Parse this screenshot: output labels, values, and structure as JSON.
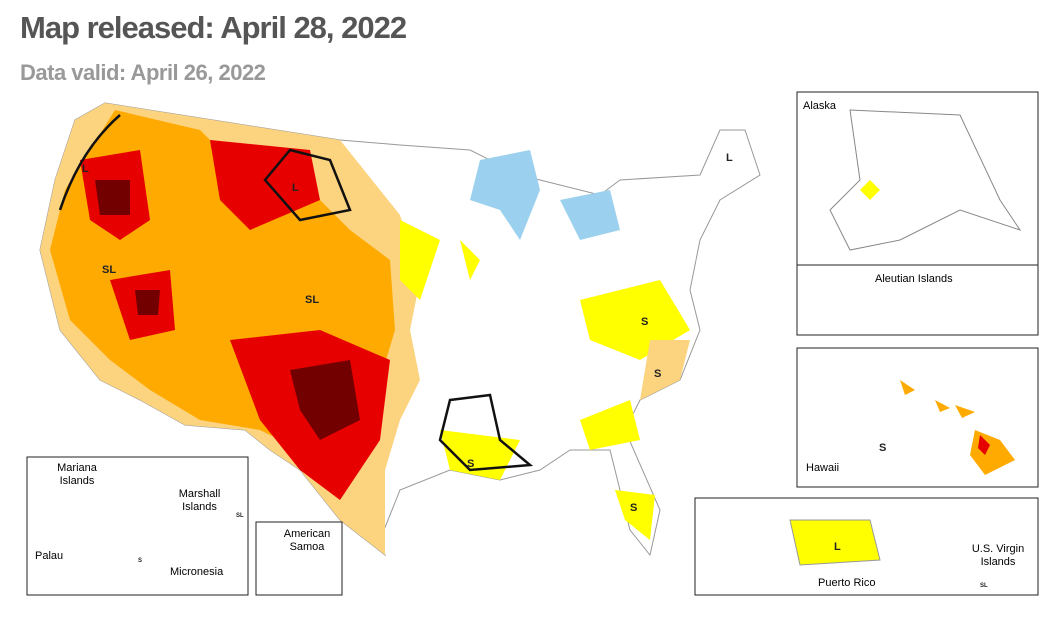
{
  "header": {
    "title": "Map released: April 28, 2022",
    "subtitle": "Data valid: April 26, 2022"
  },
  "insets": [
    {
      "label": "Alaska"
    },
    {
      "label": "Aleutian Islands"
    },
    {
      "label": "Hawaii"
    },
    {
      "label": "Puerto Rico"
    },
    {
      "label": "U.S. Virgin Islands"
    },
    {
      "label": "Mariana Islands"
    },
    {
      "label": "Marshall Islands"
    },
    {
      "label": "Palau"
    },
    {
      "label": "Micronesia"
    },
    {
      "label": "American Samoa"
    }
  ],
  "impact_labels": [
    "L",
    "SL",
    "L",
    "SL",
    "S",
    "S",
    "S",
    "S",
    "L",
    "S",
    "L",
    "SL",
    "S",
    "SL"
  ]
}
